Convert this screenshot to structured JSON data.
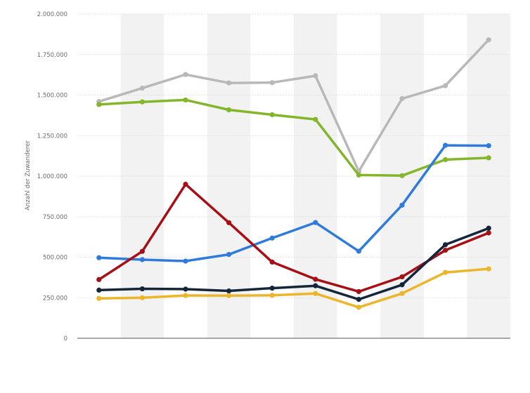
{
  "chart_data": {
    "type": "line",
    "title": "",
    "xlabel": "",
    "ylabel": "Anzahl der Zuwanderer",
    "ylim": [
      0,
      2000000
    ],
    "y_ticks": [
      0,
      250000,
      500000,
      750000,
      1000000,
      1250000,
      1500000,
      1750000,
      2000000
    ],
    "y_tick_labels": [
      "0",
      "250.000",
      "500.000",
      "750.000",
      "1.000.000",
      "1.250.000",
      "1.500.000",
      "1.750.000",
      "2.000.000"
    ],
    "x_count": 10,
    "grid": true,
    "legend": "none",
    "series": [
      {
        "color": "#b8b8b8",
        "values": [
          1460000,
          1543000,
          1627000,
          1575000,
          1577000,
          1619000,
          1030000,
          1478000,
          1558000,
          1841000
        ]
      },
      {
        "color": "#83b62a",
        "values": [
          1442000,
          1458000,
          1470000,
          1409000,
          1379000,
          1350000,
          1007000,
          1003000,
          1102000,
          1113000
        ]
      },
      {
        "color": "#2f7bdc",
        "values": [
          497000,
          485000,
          476000,
          517000,
          618000,
          714000,
          537000,
          821000,
          1190000,
          1188000
        ]
      },
      {
        "color": "#a50f15",
        "values": [
          362000,
          536000,
          950000,
          713000,
          470000,
          364000,
          288000,
          379000,
          543000,
          650000
        ]
      },
      {
        "color": "#15263a",
        "values": [
          297000,
          305000,
          303000,
          292000,
          309000,
          324000,
          240000,
          330000,
          577000,
          679000
        ]
      },
      {
        "color": "#edb52a",
        "values": [
          246000,
          250000,
          264000,
          263000,
          265000,
          276000,
          191000,
          276000,
          406000,
          428000
        ]
      }
    ]
  }
}
